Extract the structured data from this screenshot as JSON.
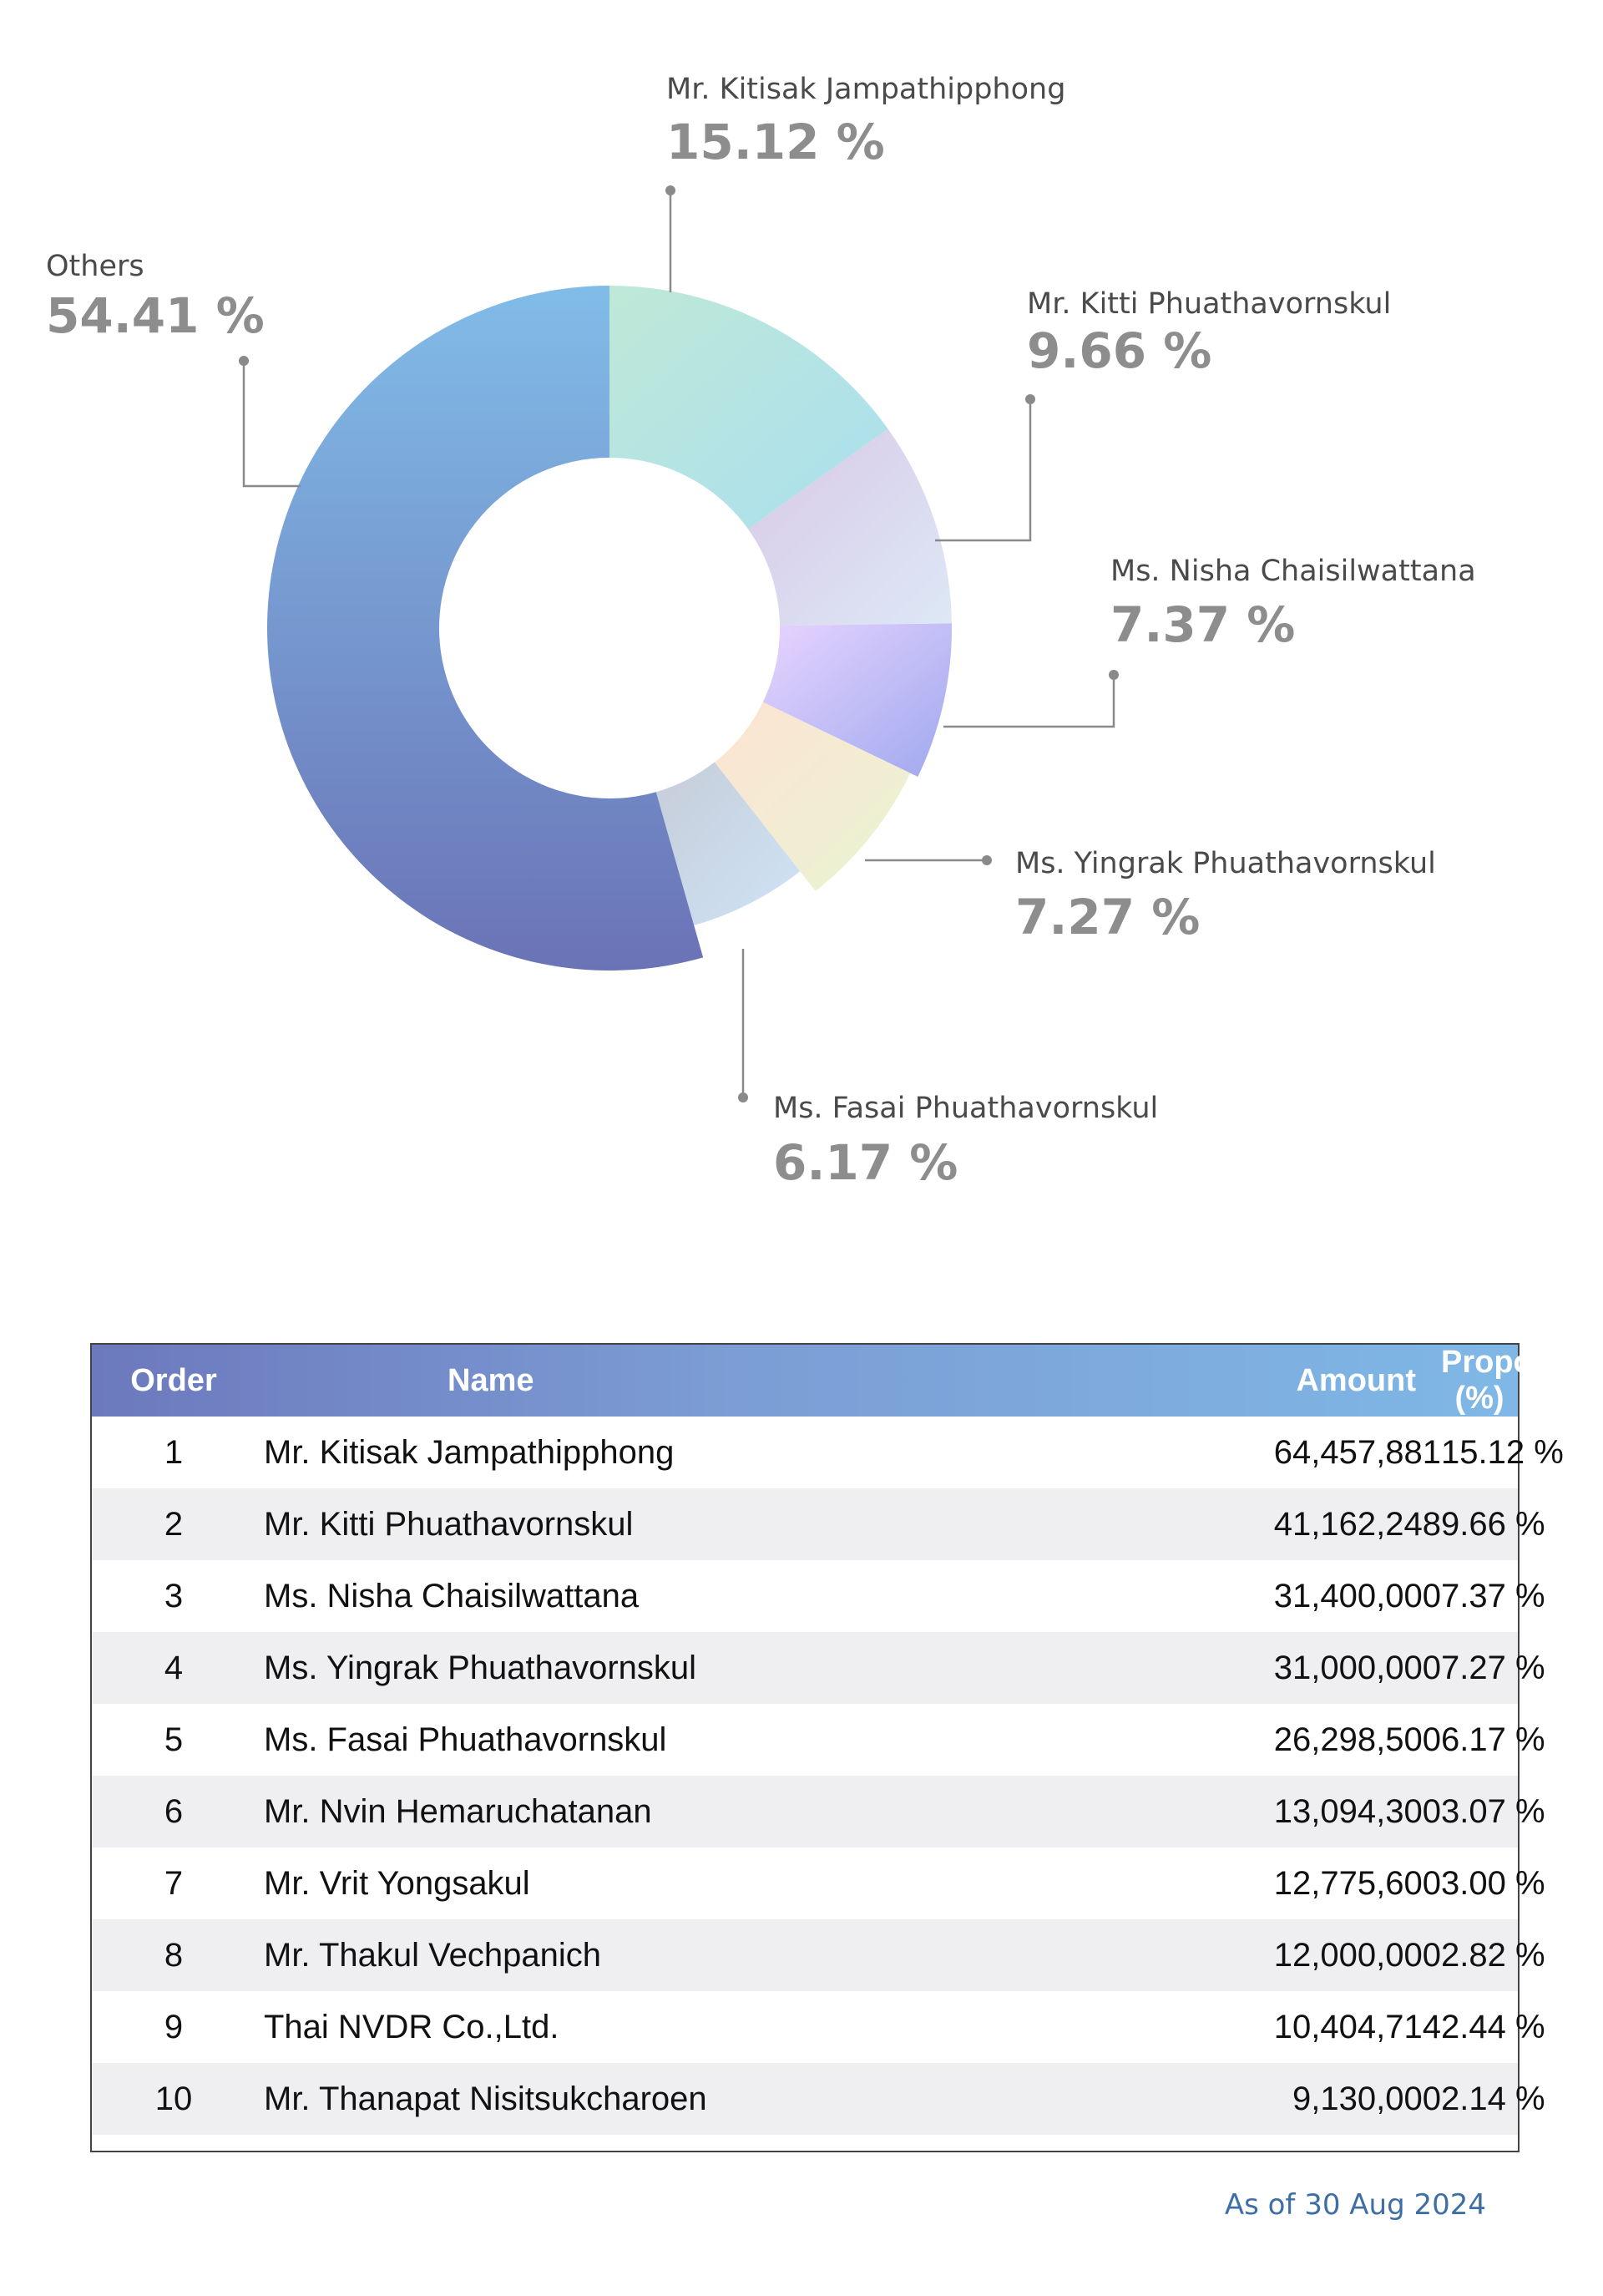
{
  "chart_data": {
    "type": "pie",
    "variant": "donut",
    "slices": [
      {
        "name": "Mr. Kitisak Jampathipphong",
        "value": 15.12,
        "display": "15.12 %",
        "color_start": "#bfe8d6",
        "color_end": "#a9dff0"
      },
      {
        "name": "Mr. Kitti Phuathavornskul",
        "value": 9.66,
        "display": "9.66 %",
        "color_start": "#d8c8e6",
        "color_end": "#dde8f6"
      },
      {
        "name": "Ms. Nisha Chaisilwattana",
        "value": 7.37,
        "display": "7.37 %",
        "color_start": "#e7d4ff",
        "color_end": "#9fa8ee"
      },
      {
        "name": "Ms. Yingrak Phuathavornskul",
        "value": 7.27,
        "display": "7.27 %",
        "color_start": "#fde3d3",
        "color_end": "#e9f4d2"
      },
      {
        "name": "Ms. Fasai Phuathavornskul",
        "value": 6.17,
        "display": "6.17 %",
        "color_start": "#c6cdd8",
        "color_end": "#cfe3f7"
      },
      {
        "name": "Others",
        "value": 54.41,
        "display": "54.41 %",
        "color_start": "#6a73b6",
        "color_end": "#81bce8"
      }
    ],
    "legend": "callout-labels"
  },
  "table": {
    "headers": {
      "order": "Order",
      "name": "Name",
      "amount": "Amount",
      "proportion": "Proportion (%)"
    },
    "header_gradient": [
      "#6c79bd",
      "#7fb8e6"
    ],
    "rows": [
      {
        "order": "1",
        "name": "Mr. Kitisak Jampathipphong",
        "amount": "64,457,881",
        "proportion": "15.12 %"
      },
      {
        "order": "2",
        "name": "Mr. Kitti Phuathavornskul",
        "amount": "41,162,248",
        "proportion": "9.66 %"
      },
      {
        "order": "3",
        "name": "Ms. Nisha Chaisilwattana",
        "amount": "31,400,000",
        "proportion": "7.37 %"
      },
      {
        "order": "4",
        "name": "Ms. Yingrak Phuathavornskul",
        "amount": "31,000,000",
        "proportion": "7.27 %"
      },
      {
        "order": "5",
        "name": "Ms. Fasai Phuathavornskul",
        "amount": "26,298,500",
        "proportion": "6.17 %"
      },
      {
        "order": "6",
        "name": "Mr. Nvin Hemaruchatanan",
        "amount": "13,094,300",
        "proportion": "3.07 %"
      },
      {
        "order": "7",
        "name": "Mr. Vrit Yongsakul",
        "amount": "12,775,600",
        "proportion": "3.00 %"
      },
      {
        "order": "8",
        "name": "Mr. Thakul Vechpanich",
        "amount": "12,000,000",
        "proportion": "2.82 %"
      },
      {
        "order": "9",
        "name": "Thai NVDR Co.,Ltd.",
        "amount": "10,404,714",
        "proportion": "2.44 %"
      },
      {
        "order": "10",
        "name": "Mr. Thanapat Nisitsukcharoen",
        "amount": "9,130,000",
        "proportion": "2.14 %"
      }
    ]
  },
  "footer": {
    "as_of": "As of 30 Aug 2024"
  }
}
